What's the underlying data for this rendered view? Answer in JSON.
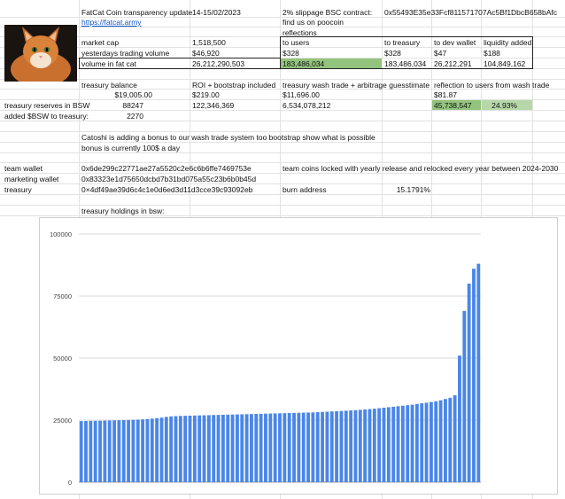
{
  "header": {
    "title": "FatCat Coin transparency update",
    "date": "14-15/02/2023",
    "url": "https://fatcat.army",
    "slippage_label": "2% slippage BSC contract:",
    "contract": "0x55493E35e33Fcf811571707Ac5Bf1DbcB658bAfc",
    "poocoin": "find us on poocoin",
    "reflections": "reflections"
  },
  "stats": {
    "market_cap_label": "market cap",
    "market_cap": "1,518,500",
    "yesterday_label": "yesterdays trading volume",
    "yesterday": "$46,920",
    "volume_label": "volume in fat cat",
    "volume": "26,212,290,503"
  },
  "reflections_table": {
    "headers": [
      "to users",
      "to treasury",
      "to dev wallet",
      "liquidity added"
    ],
    "usd": [
      "$328",
      "$328",
      "$47",
      "$188"
    ],
    "tokens": [
      "183,486,034",
      "183,486,034",
      "26,212,291",
      "104,849,162"
    ]
  },
  "treasury": {
    "balance_label": "treasury balance",
    "balance": "$19,005.00",
    "roi_label": "ROI + bootstrap included",
    "roi": "$219.00",
    "wash_label": "treasury wash trade + arbitrage guesstimate",
    "wash": "$11,696.00",
    "reflection_label": "reflection to users from wash trade",
    "reflection": "$81.87",
    "reserves_label": "treasury reserves in BSW",
    "reserves": "88247",
    "roi_tokens": "122,346,369",
    "wash_tokens": "6,534,078,212",
    "reflection_tokens": "45,738,547",
    "reflection_pct": "24.93%",
    "added_label": "added $BSW to treasury:",
    "added": "2270"
  },
  "notes": {
    "line1": "Catoshi is adding a bonus to our wash trade system too bootstrap show what is possible",
    "line2": "bonus is currently 100$ a day"
  },
  "wallets": {
    "team_label": "team wallet",
    "team": "0x6de299c22771ae27a5520c2e6c6b6ffe7469753e",
    "team_note": "team coins locked with yearly release and relocked every year between 2024-2030",
    "marketing_label": "marketing wallet",
    "marketing": "0x83323e1d75650dcbd7b31bd075a55c23b6b0b45d",
    "treasury_label": "treasury",
    "treasury": "0×4df49ae39d6c4c1e0d6ed3d11d3cce39c93092eb",
    "burn_label": "burn address",
    "burn_pct": "15.1791%",
    "holdings_label": "treasury holdings in bsw:"
  },
  "colors": {
    "bar": "#4a86e8",
    "green": "#93c47d",
    "light_green": "#b6d7a8",
    "link": "#1155cc"
  },
  "icons": {
    "photo": "cat-photo"
  },
  "chart_data": {
    "type": "bar",
    "title": "",
    "xlabel": "",
    "ylabel": "",
    "ylim": [
      0,
      100000
    ],
    "yticks": [
      "0",
      "25000",
      "50000",
      "75000",
      "100000"
    ],
    "grid": true,
    "legend": "none",
    "values": [
      24600,
      24650,
      24700,
      24700,
      24750,
      24800,
      24850,
      24900,
      24950,
      25000,
      25050,
      25100,
      25200,
      25300,
      25450,
      25600,
      25800,
      26000,
      26300,
      26500,
      26600,
      26700,
      26750,
      26800,
      26850,
      26900,
      26950,
      27000,
      27050,
      27100,
      27150,
      27200,
      27250,
      27300,
      27350,
      27400,
      27450,
      27500,
      27550,
      27600,
      27650,
      27700,
      27750,
      27800,
      27850,
      27900,
      27950,
      28000,
      28050,
      28100,
      28200,
      28300,
      28400,
      28500,
      28600,
      28700,
      28800,
      28900,
      29000,
      29150,
      29300,
      29450,
      29600,
      29800,
      30000,
      30200,
      30400,
      30600,
      30800,
      31000,
      31200,
      31500,
      31800,
      32000,
      32300,
      32600,
      33000,
      33500,
      34000,
      35000,
      51000,
      69000,
      80000,
      86000,
      88000
    ]
  }
}
